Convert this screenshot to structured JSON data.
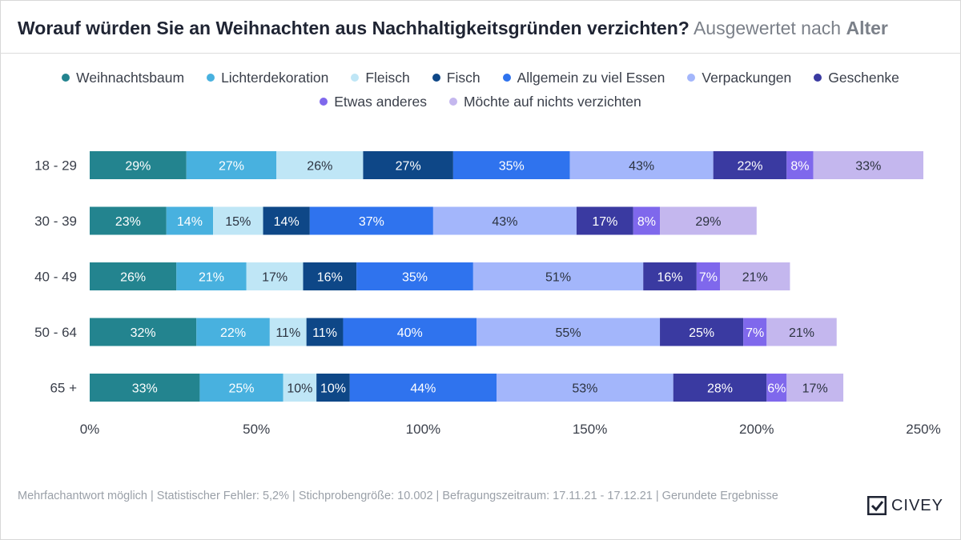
{
  "header": {
    "title": "Worauf würden Sie an Weihnachten aus Nachhaltigkeitsgründen verzichten?",
    "subtitle": "Ausgewertet nach",
    "subtitle_strong": "Alter"
  },
  "colors": {
    "Weihnachtsbaum": "#23848f",
    "Lichterdekoration": "#48b1df",
    "Fleisch": "#bfe6f6",
    "Fisch": "#0e4787",
    "Allgemein zu viel Essen": "#2f73ee",
    "Verpackungen": "#a3b6fb",
    "Geschenke": "#3a3aa1",
    "Etwas anderes": "#7f68ec",
    "Möchte auf nichts verzichten": "#c4b7ee"
  },
  "chart_data": {
    "type": "bar",
    "orientation": "horizontal",
    "stacked": true,
    "title": "Worauf würden Sie an Weihnachten aus Nachhaltigkeitsgründen verzichten?",
    "categories": [
      "18 - 29",
      "30 - 39",
      "40 - 49",
      "50 - 64",
      "65 +"
    ],
    "series": [
      {
        "name": "Weihnachtsbaum",
        "values": [
          29,
          23,
          26,
          32,
          33
        ]
      },
      {
        "name": "Lichterdekoration",
        "values": [
          27,
          14,
          21,
          22,
          25
        ]
      },
      {
        "name": "Fleisch",
        "values": [
          26,
          15,
          17,
          11,
          10
        ]
      },
      {
        "name": "Fisch",
        "values": [
          27,
          14,
          16,
          11,
          10
        ]
      },
      {
        "name": "Allgemein zu viel Essen",
        "values": [
          35,
          37,
          35,
          40,
          44
        ]
      },
      {
        "name": "Verpackungen",
        "values": [
          43,
          43,
          51,
          55,
          53
        ]
      },
      {
        "name": "Geschenke",
        "values": [
          22,
          17,
          16,
          25,
          28
        ]
      },
      {
        "name": "Etwas anderes",
        "values": [
          8,
          8,
          7,
          7,
          6
        ]
      },
      {
        "name": "Möchte auf nichts verzichten",
        "values": [
          33,
          29,
          21,
          21,
          17
        ]
      }
    ],
    "xlim": [
      0,
      250
    ],
    "xticks": [
      0,
      50,
      100,
      150,
      200,
      250
    ],
    "xtick_labels": [
      "0%",
      "50%",
      "100%",
      "150%",
      "200%",
      "250%"
    ],
    "value_suffix": "%",
    "legend_position": "top"
  },
  "footer": {
    "note": "Mehrfachantwort möglich | Statistischer Fehler: 5,2% | Stichprobengröße: 10.002 | Befragungszeitraum: 17.11.21 - 17.12.21 | Gerundete Ergebnisse"
  },
  "logo": {
    "text": "CIVEY"
  }
}
